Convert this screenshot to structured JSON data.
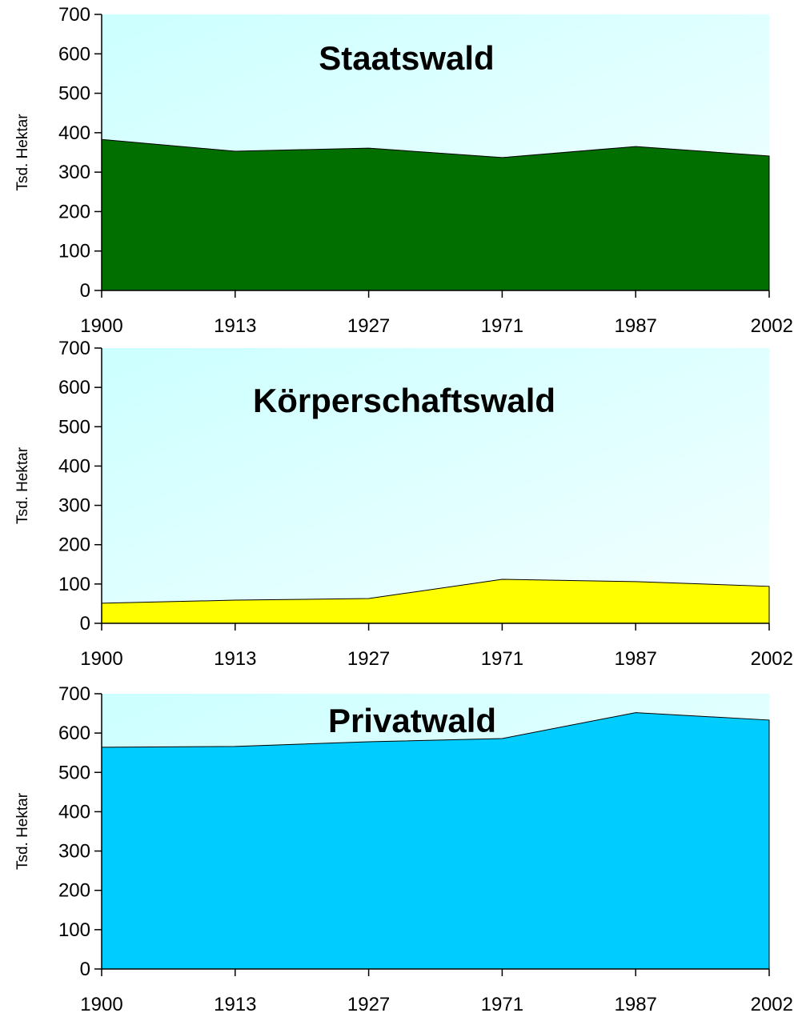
{
  "chart_data": [
    {
      "type": "area",
      "title": "Staatswald",
      "y_label": "Tsd. Hektar",
      "categories": [
        "1900",
        "1913",
        "1927",
        "1971",
        "1987",
        "2002"
      ],
      "values": [
        383,
        353,
        361,
        337,
        365,
        341
      ],
      "color": "#006f00",
      "ylim": [
        0,
        700
      ],
      "yticks": [
        0,
        100,
        200,
        300,
        400,
        500,
        600,
        700
      ]
    },
    {
      "type": "area",
      "title": "Körperschaftswald",
      "y_label": "Tsd. Hektar",
      "categories": [
        "1900",
        "1913",
        "1927",
        "1971",
        "1987",
        "2002"
      ],
      "values": [
        51,
        59,
        63,
        112,
        106,
        94
      ],
      "color": "#ffff00",
      "ylim": [
        0,
        700
      ],
      "yticks": [
        0,
        100,
        200,
        300,
        400,
        500,
        600,
        700
      ]
    },
    {
      "type": "area",
      "title": "Privatwald",
      "y_label": "Tsd. Hektar",
      "categories": [
        "1900",
        "1913",
        "1927",
        "1971",
        "1987",
        "2002"
      ],
      "values": [
        564,
        566,
        578,
        586,
        652,
        633
      ],
      "color": "#00ccff",
      "ylim": [
        0,
        700
      ],
      "yticks": [
        0,
        100,
        200,
        300,
        400,
        500,
        600,
        700
      ]
    }
  ]
}
